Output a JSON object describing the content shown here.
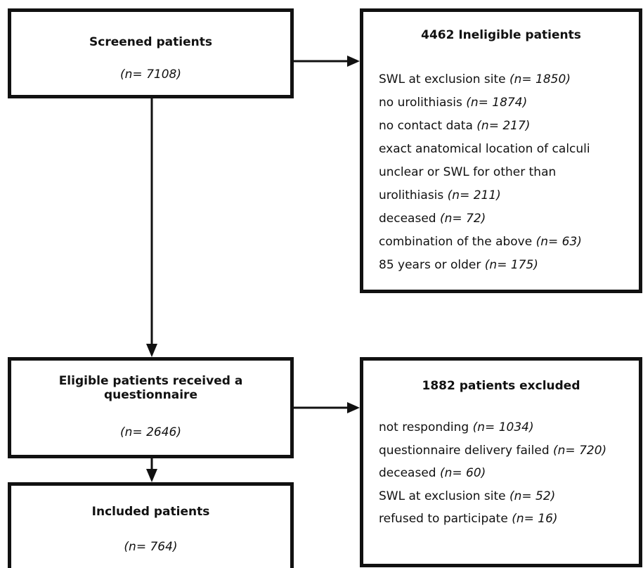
{
  "screened": {
    "title": "Screened patients",
    "count": "(n= 7108)"
  },
  "ineligible": {
    "title": "4462 Ineligible patients",
    "items": [
      {
        "text": "SWL at exclusion site ",
        "n": "(n= 1850)"
      },
      {
        "text": "no urolithiasis ",
        "n": "(n= 1874)"
      },
      {
        "text": "no contact data ",
        "n": "(n= 217)"
      },
      {
        "text": "exact anatomical location of calculi",
        "n": ""
      },
      {
        "text": "unclear or SWL for other than",
        "n": ""
      },
      {
        "text": "urolithiasis ",
        "n": "(n= 211)"
      },
      {
        "text": "deceased ",
        "n": "(n= 72)"
      },
      {
        "text": "combination of the above ",
        "n": "(n= 63)"
      },
      {
        "text": "85 years or older ",
        "n": "(n= 175)"
      }
    ]
  },
  "eligible": {
    "title_line1": "Eligible patients received a",
    "title_line2": "questionnaire",
    "count": "(n= 2646)"
  },
  "excluded": {
    "title": "1882 patients excluded",
    "items": [
      {
        "text": "not responding ",
        "n": "(n= 1034)"
      },
      {
        "text": "questionnaire delivery failed ",
        "n": "(n= 720)"
      },
      {
        "text": "deceased ",
        "n": "(n= 60)"
      },
      {
        "text": "SWL at exclusion site ",
        "n": "(n= 52)"
      },
      {
        "text": "refused to participate ",
        "n": "(n= 16)"
      }
    ]
  },
  "included": {
    "title": "Included patients",
    "count": "(n= 764)"
  }
}
